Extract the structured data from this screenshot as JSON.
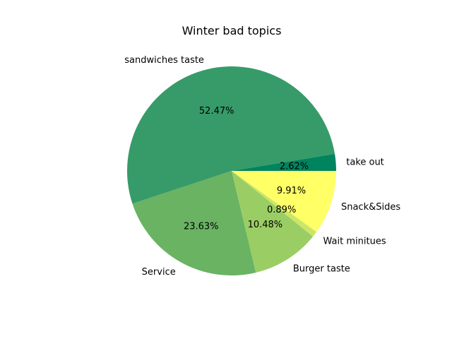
{
  "chart_data": {
    "type": "pie",
    "title": "Winter bad topics",
    "labels": [
      "take out",
      "sandwiches taste",
      "Service",
      "Burger taste",
      "Wait minitues",
      "Snack&Sides"
    ],
    "values": [
      2.62,
      52.47,
      23.63,
      10.48,
      0.89,
      9.91
    ],
    "percent_labels": [
      "2.62%",
      "52.47%",
      "23.63%",
      "10.48%",
      "0.89%",
      "9.91%"
    ],
    "colors": [
      "#00845f",
      "#369b68",
      "#69b363",
      "#9bcd65",
      "#cbe667",
      "#ffff66"
    ],
    "start_angle_deg": 0,
    "direction": "counterclockwise"
  }
}
